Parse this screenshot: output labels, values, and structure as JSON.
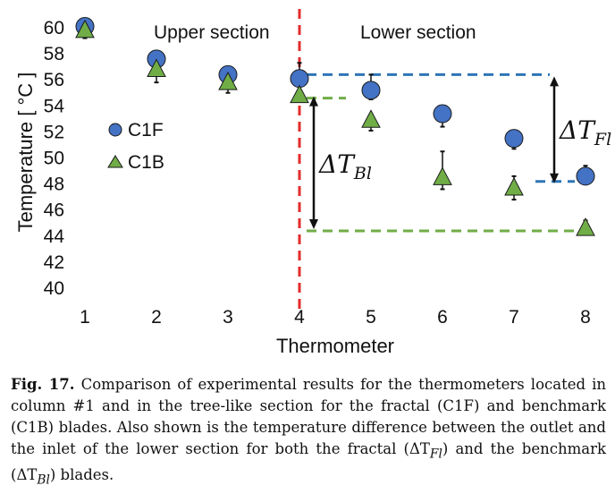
{
  "chart_data": {
    "type": "scatter",
    "x": [
      1,
      2,
      3,
      4,
      5,
      6,
      7,
      8
    ],
    "xlabel": "Thermometer",
    "ylabel": "Temperature [ °C ]",
    "xlim": [
      1,
      8
    ],
    "ylim": [
      40,
      60
    ],
    "y_ticks": [
      40,
      42,
      44,
      46,
      48,
      50,
      52,
      54,
      56,
      58,
      60
    ],
    "x_ticks": [
      1,
      2,
      3,
      4,
      5,
      6,
      7,
      8
    ],
    "grid": false,
    "legend_position": "left-middle",
    "series": [
      {
        "name": "C1F",
        "marker": "circle",
        "color": "#4472C4",
        "values": [
          60.1,
          57.6,
          56.4,
          56.1,
          55.2,
          53.4,
          51.5,
          48.6
        ],
        "error_low": [
          0.2,
          0.3,
          0.2,
          1.0,
          0.7,
          1.0,
          0.8,
          0.5
        ],
        "error_high": [
          0.3,
          0.3,
          0.3,
          1.2,
          1.2,
          0.0,
          0.0,
          0.8
        ]
      },
      {
        "name": "C1B",
        "marker": "triangle",
        "color": "#70AD47",
        "values": [
          59.8,
          56.8,
          55.8,
          54.8,
          52.9,
          48.5,
          47.7,
          44.6
        ],
        "error_low": [
          0.6,
          1.0,
          0.8,
          0.3,
          0.8,
          0.9,
          0.9,
          0.0
        ],
        "error_high": [
          0.0,
          0.0,
          0.0,
          0.0,
          0.2,
          2.0,
          0.9,
          0.6
        ]
      }
    ],
    "annotations": {
      "upper_section": "Upper section",
      "lower_section": "Lower section",
      "dt_bl_label": "ΔT",
      "dt_bl_sub": "Bl",
      "dt_fl_label": "ΔT",
      "dt_fl_sub": "Fl",
      "divider_x": 4,
      "fl_high": 56.4,
      "fl_low": 48.2,
      "bl_high": 54.6,
      "bl_low": 44.4
    },
    "colors": {
      "divider": "#E32B2B",
      "fl_dash": "#2E75B6",
      "bl_dash": "#70AD47"
    }
  },
  "caption": {
    "label": "Fig. 17.",
    "part1": " Comparison of experimental results for the thermometers located in column #1 and in the tree-like section for the fractal (C1F) and benchmark (C1B) blades. Also shown is the temperature difference between the outlet and the inlet of the lower section for both the fractal (",
    "fl_symbol": "ΔT",
    "fl_sub": "Fl",
    "part2": ") and the benchmark (",
    "bl_symbol": "ΔT",
    "bl_sub": "Bl",
    "part3": ") blades."
  }
}
